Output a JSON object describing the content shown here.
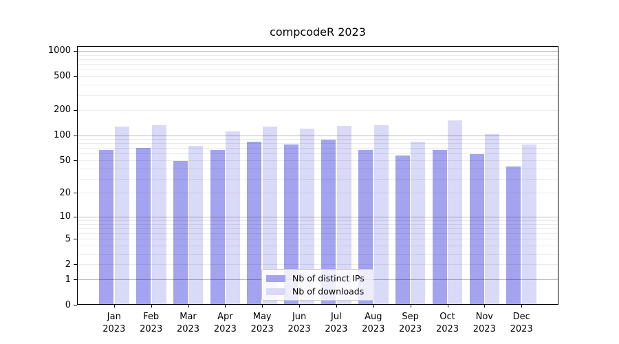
{
  "title": "compcodeR 2023",
  "chart_data": {
    "type": "bar",
    "title": "compcodeR 2023",
    "categories": [
      {
        "month": "Jan",
        "year": "2023"
      },
      {
        "month": "Feb",
        "year": "2023"
      },
      {
        "month": "Mar",
        "year": "2023"
      },
      {
        "month": "Apr",
        "year": "2023"
      },
      {
        "month": "May",
        "year": "2023"
      },
      {
        "month": "Jun",
        "year": "2023"
      },
      {
        "month": "Jul",
        "year": "2023"
      },
      {
        "month": "Aug",
        "year": "2023"
      },
      {
        "month": "Sep",
        "year": "2023"
      },
      {
        "month": "Oct",
        "year": "2023"
      },
      {
        "month": "Nov",
        "year": "2023"
      },
      {
        "month": "Dec",
        "year": "2023"
      }
    ],
    "series": [
      {
        "name": "Nb of distinct IPs",
        "color": "#a3a3ef",
        "values": [
          66,
          70,
          49,
          66,
          84,
          78,
          88,
          66,
          57,
          67,
          59,
          42
        ]
      },
      {
        "name": "Nb of downloads",
        "color": "#d9d9f8",
        "values": [
          127,
          132,
          75,
          111,
          127,
          120,
          128,
          132,
          84,
          151,
          103,
          78
        ]
      }
    ],
    "xlabel": "",
    "ylabel": "",
    "y_scale": "log10(value+1)",
    "y_ticks": [
      0,
      1,
      2,
      5,
      10,
      20,
      50,
      100,
      200,
      500,
      1000
    ],
    "ylim": [
      0,
      1140
    ],
    "grid": {
      "minor_values": [
        2,
        3,
        4,
        5,
        6,
        7,
        8,
        9,
        20,
        30,
        40,
        50,
        60,
        70,
        80,
        90,
        200,
        300,
        400,
        500,
        600,
        700,
        800,
        900
      ],
      "major_values": [
        1,
        10,
        100,
        1000
      ]
    },
    "legend_position": "bottom-center"
  },
  "colors": {
    "grid_major": "rgba(0,0,0,0.28)",
    "grid_minor": "rgba(0,0,0,0.08)",
    "axis": "#000000",
    "legend_border": "#cccccc",
    "legend_background": "rgba(255,255,255,0.8)"
  }
}
